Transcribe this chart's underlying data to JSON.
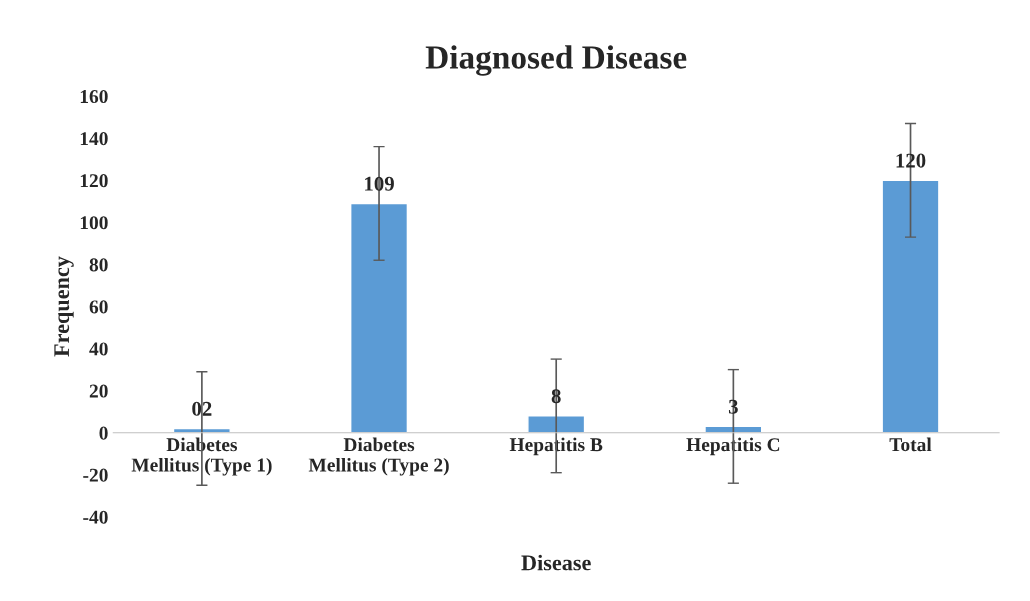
{
  "chart_data": {
    "type": "bar",
    "title": "Diagnosed Disease",
    "xlabel": "Disease",
    "ylabel": "Frequency",
    "categories": [
      "Diabetes\nMellitus (Type 1)",
      "Diabetes\nMellitus (Type 2)",
      "Hepatitis B",
      "Hepatitis C",
      "Total"
    ],
    "values": [
      2,
      109,
      8,
      3,
      120
    ],
    "value_labels": [
      "02",
      "109",
      "8",
      "3",
      "120"
    ],
    "errors": [
      27,
      27,
      27,
      27,
      27
    ],
    "color": "#5b9bd5",
    "ylim": [
      -40,
      160
    ],
    "yticks": [
      -40,
      -20,
      0,
      20,
      40,
      60,
      80,
      100,
      120,
      140,
      160
    ],
    "grid": false,
    "legend": false
  }
}
